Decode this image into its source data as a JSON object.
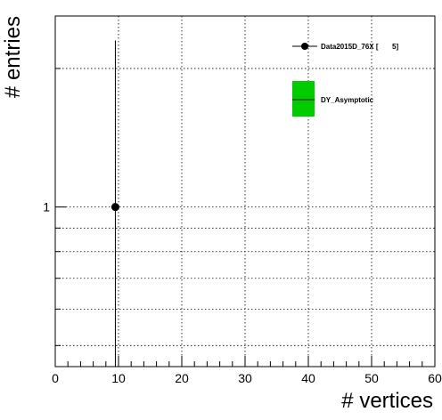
{
  "chart_data": {
    "type": "scatter",
    "title": "",
    "xlabel": "# vertices",
    "ylabel": "# entries",
    "xlim": [
      0,
      60
    ],
    "ylim": [
      0.45,
      2.6
    ],
    "y_log_scale": true,
    "x_ticks": [
      "0",
      "10",
      "20",
      "30",
      "40",
      "50",
      "60"
    ],
    "y_tick_labels": [
      "1"
    ],
    "grid": true,
    "legend_position": "top-right",
    "series": [
      {
        "name": "Data2015D_76X [       5]",
        "marker": "circle",
        "color": "#000000",
        "points": [
          {
            "x": 9.5,
            "y": 1,
            "err_low": 1,
            "err_high": 1.3
          }
        ]
      },
      {
        "name": "DY_Asymptotic",
        "style": "filled-box",
        "color": "#00cc00",
        "points": []
      }
    ]
  }
}
